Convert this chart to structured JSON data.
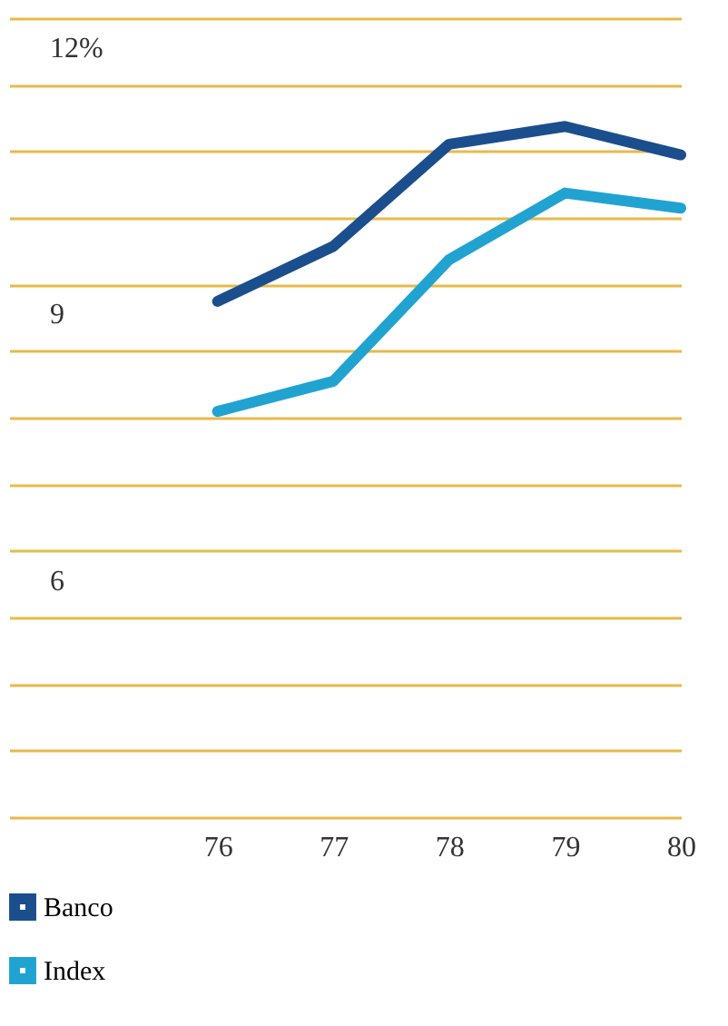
{
  "chart_data": {
    "type": "line",
    "categories": [
      "76",
      "77",
      "78",
      "79",
      "80"
    ],
    "series": [
      {
        "name": "Banco",
        "color": "#1b4e8c",
        "values": [
          8.81,
          9.43,
          10.58,
          10.78,
          10.46
        ]
      },
      {
        "name": "Index",
        "color": "#21a3d2",
        "values": [
          7.57,
          7.91,
          9.28,
          10.03,
          9.86
        ]
      }
    ],
    "ylim": [
      3,
      12
    ],
    "yticks": [
      {
        "value": 12,
        "label": "12%"
      },
      {
        "value": 11.25,
        "label": null
      },
      {
        "value": 10.5,
        "label": null
      },
      {
        "value": 9.75,
        "label": null
      },
      9,
      {
        "value": 8.25,
        "label": null
      },
      {
        "value": 7.5,
        "label": null
      },
      {
        "value": 6.75,
        "label": null
      },
      6,
      {
        "value": 5.25,
        "label": null
      },
      {
        "value": 4.5,
        "label": null
      },
      {
        "value": 3.75,
        "label": null
      },
      {
        "value": 3,
        "label": null
      }
    ],
    "grid": "y",
    "legend": "bottom",
    "marker": "none",
    "line_style": "solid"
  }
}
